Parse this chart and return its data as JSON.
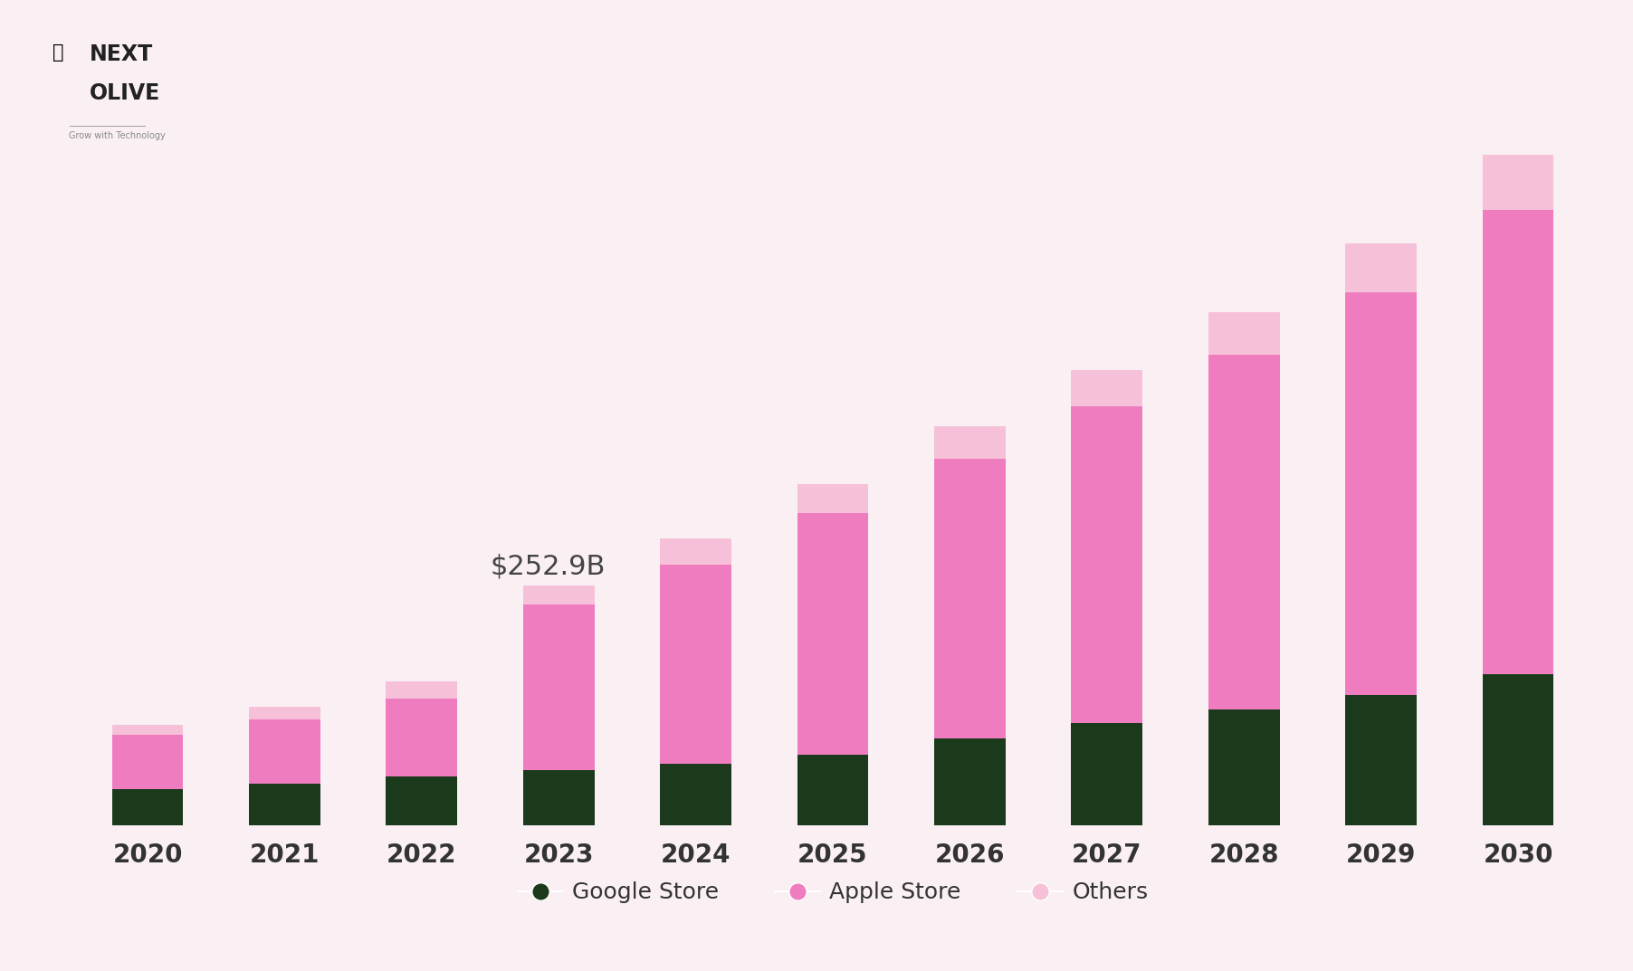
{
  "years": [
    "2020",
    "2021",
    "2022",
    "2023",
    "2024",
    "2025",
    "2026",
    "2027",
    "2028",
    "2029",
    "2030"
  ],
  "google_store": [
    38,
    44,
    52,
    58,
    65,
    75,
    92,
    108,
    122,
    138,
    160
  ],
  "apple_store": [
    58,
    68,
    82,
    175,
    210,
    255,
    295,
    335,
    375,
    425,
    490
  ],
  "others": [
    10,
    13,
    18,
    20,
    28,
    30,
    35,
    38,
    45,
    52,
    58
  ],
  "annotation_text": "$252.9B",
  "annotation_year_idx": 3,
  "google_color": "#1b3a1b",
  "apple_color": "#f07cc0",
  "others_color": "#f5c0d8",
  "bg_color": "#faf0f4",
  "bar_width": 0.52,
  "legend_labels": [
    "Google Store",
    "Apple Store",
    "Others"
  ],
  "annotation_fontsize": 22,
  "tick_fontsize": 20,
  "legend_fontsize": 18
}
